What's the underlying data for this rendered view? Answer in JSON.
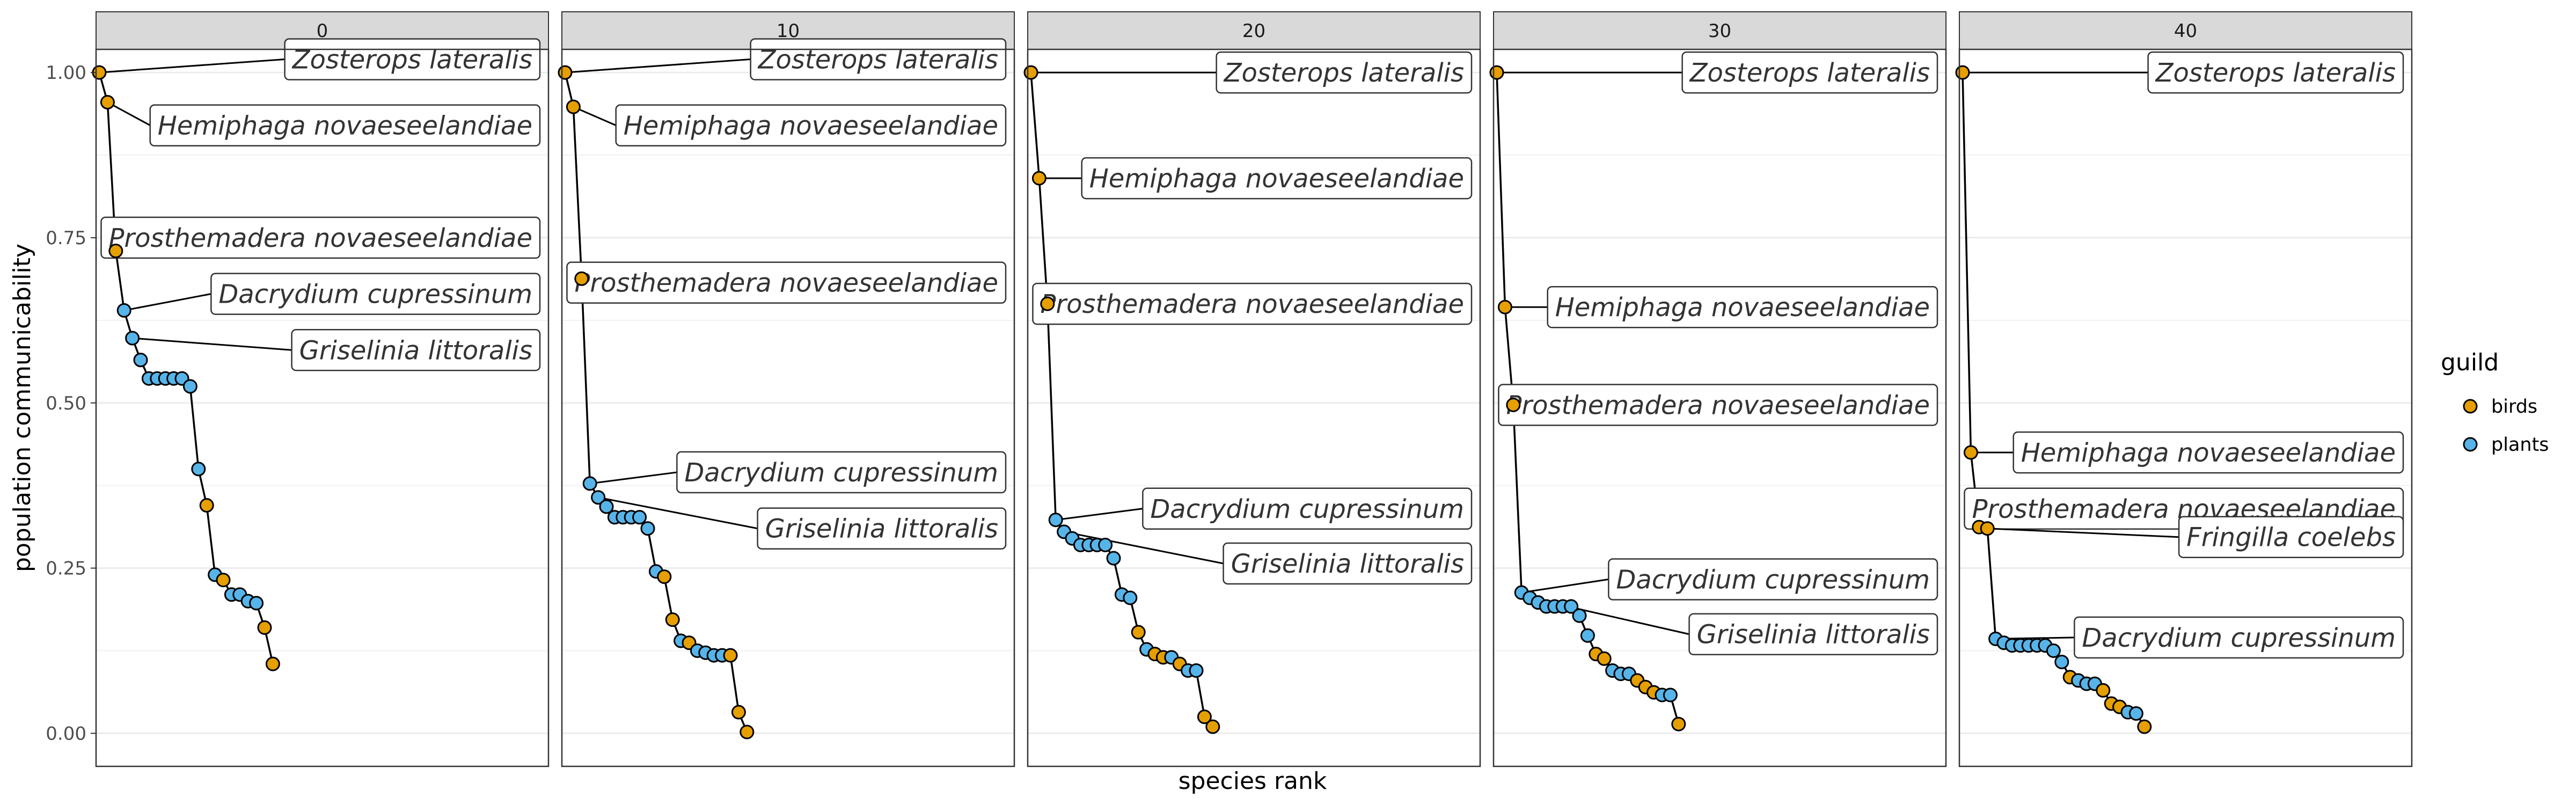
{
  "chart_data": {
    "type": "scatter",
    "xlabel": "species rank",
    "ylabel": "population communicability",
    "ylim": [
      -0.05,
      1.035
    ],
    "y_ticks": [
      "0.00",
      "0.25",
      "0.50",
      "0.75",
      "1.00"
    ],
    "grid": true,
    "legend": {
      "title": "guild",
      "placement": "right",
      "entries": [
        {
          "name": "birds",
          "color": "#e69f00"
        },
        {
          "name": "plants",
          "color": "#56b4e9"
        }
      ]
    },
    "panels": [
      {
        "strip": "0",
        "points": [
          [
            1,
            1.0,
            "birds"
          ],
          [
            2,
            0.955,
            "birds"
          ],
          [
            3,
            0.73,
            "birds"
          ],
          [
            4,
            0.64,
            "plants"
          ],
          [
            5,
            0.598,
            "plants"
          ],
          [
            6,
            0.565,
            "plants"
          ],
          [
            7,
            0.537,
            "plants"
          ],
          [
            8,
            0.537,
            "plants"
          ],
          [
            9,
            0.537,
            "plants"
          ],
          [
            10,
            0.537,
            "plants"
          ],
          [
            11,
            0.537,
            "plants"
          ],
          [
            12,
            0.525,
            "plants"
          ],
          [
            13,
            0.4,
            "plants"
          ],
          [
            14,
            0.345,
            "birds"
          ],
          [
            15,
            0.24,
            "plants"
          ],
          [
            16,
            0.232,
            "birds"
          ],
          [
            17,
            0.21,
            "plants"
          ],
          [
            18,
            0.21,
            "plants"
          ],
          [
            19,
            0.2,
            "plants"
          ],
          [
            20,
            0.197,
            "plants"
          ],
          [
            21,
            0.16,
            "birds"
          ],
          [
            22,
            0.105,
            "birds"
          ]
        ],
        "callouts": [
          {
            "rank": 1,
            "label": "Zosterops lateralis",
            "ly": 1.02
          },
          {
            "rank": 2,
            "label": "Hemiphaga novaeseelandiae",
            "ly": 0.92
          },
          {
            "rank": 3,
            "label": "Prosthemadera novaeseelandiae",
            "ly": 0.75
          },
          {
            "rank": 4,
            "label": "Dacrydium cupressinum",
            "ly": 0.665
          },
          {
            "rank": 5,
            "label": "Griselinia littoralis",
            "ly": 0.58
          }
        ]
      },
      {
        "strip": "10",
        "points": [
          [
            1,
            1.0,
            "birds"
          ],
          [
            2,
            0.948,
            "birds"
          ],
          [
            3,
            0.688,
            "birds"
          ],
          [
            4,
            0.378,
            "plants"
          ],
          [
            5,
            0.357,
            "plants"
          ],
          [
            6,
            0.343,
            "plants"
          ],
          [
            7,
            0.327,
            "plants"
          ],
          [
            8,
            0.327,
            "plants"
          ],
          [
            9,
            0.327,
            "plants"
          ],
          [
            10,
            0.327,
            "plants"
          ],
          [
            11,
            0.31,
            "plants"
          ],
          [
            12,
            0.245,
            "plants"
          ],
          [
            13,
            0.237,
            "birds"
          ],
          [
            14,
            0.172,
            "birds"
          ],
          [
            15,
            0.14,
            "plants"
          ],
          [
            16,
            0.137,
            "birds"
          ],
          [
            17,
            0.125,
            "plants"
          ],
          [
            18,
            0.122,
            "plants"
          ],
          [
            19,
            0.118,
            "plants"
          ],
          [
            20,
            0.118,
            "plants"
          ],
          [
            21,
            0.118,
            "birds"
          ],
          [
            22,
            0.032,
            "birds"
          ],
          [
            23,
            0.002,
            "birds"
          ]
        ],
        "callouts": [
          {
            "rank": 1,
            "label": "Zosterops lateralis",
            "ly": 1.02
          },
          {
            "rank": 2,
            "label": "Hemiphaga novaeseelandiae",
            "ly": 0.92
          },
          {
            "rank": 3,
            "label": "Prosthemadera novaeseelandiae",
            "ly": 0.682
          },
          {
            "rank": 4,
            "label": "Dacrydium cupressinum",
            "ly": 0.395
          },
          {
            "rank": 5,
            "label": "Griselinia littoralis",
            "ly": 0.31
          }
        ]
      },
      {
        "strip": "20",
        "points": [
          [
            1,
            1.0,
            "birds"
          ],
          [
            2,
            0.84,
            "birds"
          ],
          [
            3,
            0.65,
            "birds"
          ],
          [
            4,
            0.323,
            "plants"
          ],
          [
            5,
            0.305,
            "plants"
          ],
          [
            6,
            0.295,
            "plants"
          ],
          [
            7,
            0.285,
            "plants"
          ],
          [
            8,
            0.285,
            "plants"
          ],
          [
            9,
            0.285,
            "plants"
          ],
          [
            10,
            0.285,
            "plants"
          ],
          [
            11,
            0.265,
            "plants"
          ],
          [
            12,
            0.21,
            "plants"
          ],
          [
            13,
            0.205,
            "plants"
          ],
          [
            14,
            0.153,
            "birds"
          ],
          [
            15,
            0.127,
            "plants"
          ],
          [
            16,
            0.12,
            "birds"
          ],
          [
            17,
            0.115,
            "birds"
          ],
          [
            18,
            0.115,
            "plants"
          ],
          [
            19,
            0.105,
            "birds"
          ],
          [
            20,
            0.095,
            "plants"
          ],
          [
            21,
            0.095,
            "plants"
          ],
          [
            22,
            0.025,
            "birds"
          ],
          [
            23,
            0.01,
            "birds"
          ]
        ],
        "callouts": [
          {
            "rank": 1,
            "label": "Zosterops lateralis",
            "ly": 1.0
          },
          {
            "rank": 2,
            "label": "Hemiphaga novaeseelandiae",
            "ly": 0.84
          },
          {
            "rank": 3,
            "label": "Prosthemadera novaeseelandiae",
            "ly": 0.65
          },
          {
            "rank": 4,
            "label": "Dacrydium cupressinum",
            "ly": 0.34
          },
          {
            "rank": 5,
            "label": "Griselinia littoralis",
            "ly": 0.257
          }
        ]
      },
      {
        "strip": "30",
        "points": [
          [
            1,
            1.0,
            "birds"
          ],
          [
            2,
            0.645,
            "birds"
          ],
          [
            3,
            0.497,
            "birds"
          ],
          [
            4,
            0.213,
            "plants"
          ],
          [
            5,
            0.205,
            "plants"
          ],
          [
            6,
            0.198,
            "plants"
          ],
          [
            7,
            0.192,
            "plants"
          ],
          [
            8,
            0.192,
            "plants"
          ],
          [
            9,
            0.192,
            "plants"
          ],
          [
            10,
            0.192,
            "plants"
          ],
          [
            11,
            0.178,
            "plants"
          ],
          [
            12,
            0.148,
            "plants"
          ],
          [
            13,
            0.12,
            "birds"
          ],
          [
            14,
            0.113,
            "birds"
          ],
          [
            15,
            0.095,
            "plants"
          ],
          [
            16,
            0.09,
            "plants"
          ],
          [
            17,
            0.09,
            "plants"
          ],
          [
            18,
            0.08,
            "birds"
          ],
          [
            19,
            0.07,
            "birds"
          ],
          [
            20,
            0.062,
            "birds"
          ],
          [
            21,
            0.058,
            "plants"
          ],
          [
            22,
            0.058,
            "plants"
          ],
          [
            23,
            0.014,
            "birds"
          ]
        ],
        "callouts": [
          {
            "rank": 1,
            "label": "Zosterops lateralis",
            "ly": 1.0
          },
          {
            "rank": 2,
            "label": "Hemiphaga novaeseelandiae",
            "ly": 0.645
          },
          {
            "rank": 3,
            "label": "Prosthemadera novaeseelandiae",
            "ly": 0.497
          },
          {
            "rank": 4,
            "label": "Dacrydium cupressinum",
            "ly": 0.233
          },
          {
            "rank": 5,
            "label": "Griselinia littoralis",
            "ly": 0.15
          }
        ]
      },
      {
        "strip": "40",
        "points": [
          [
            1,
            1.0,
            "birds"
          ],
          [
            2,
            0.425,
            "birds"
          ],
          [
            3,
            0.312,
            "birds"
          ],
          [
            4,
            0.31,
            "birds"
          ],
          [
            5,
            0.143,
            "plants"
          ],
          [
            6,
            0.137,
            "plants"
          ],
          [
            7,
            0.133,
            "plants"
          ],
          [
            8,
            0.133,
            "plants"
          ],
          [
            9,
            0.133,
            "plants"
          ],
          [
            10,
            0.133,
            "plants"
          ],
          [
            11,
            0.133,
            "plants"
          ],
          [
            12,
            0.125,
            "plants"
          ],
          [
            13,
            0.108,
            "plants"
          ],
          [
            14,
            0.085,
            "birds"
          ],
          [
            15,
            0.08,
            "plants"
          ],
          [
            16,
            0.075,
            "plants"
          ],
          [
            17,
            0.075,
            "plants"
          ],
          [
            18,
            0.065,
            "birds"
          ],
          [
            19,
            0.045,
            "birds"
          ],
          [
            20,
            0.04,
            "birds"
          ],
          [
            21,
            0.032,
            "plants"
          ],
          [
            22,
            0.03,
            "plants"
          ],
          [
            23,
            0.01,
            "birds"
          ]
        ],
        "callouts": [
          {
            "rank": 1,
            "label": "Zosterops lateralis",
            "ly": 1.0
          },
          {
            "rank": 2,
            "label": "Hemiphaga novaeseelandiae",
            "ly": 0.425
          },
          {
            "rank": 3,
            "label": "Prosthemadera novaeseelandiae",
            "ly": 0.34
          },
          {
            "rank": 4,
            "label": "Fringilla coelebs",
            "ly": 0.297
          },
          {
            "rank": 5,
            "label": "Dacrydium cupressinum",
            "ly": 0.145
          }
        ]
      }
    ]
  }
}
